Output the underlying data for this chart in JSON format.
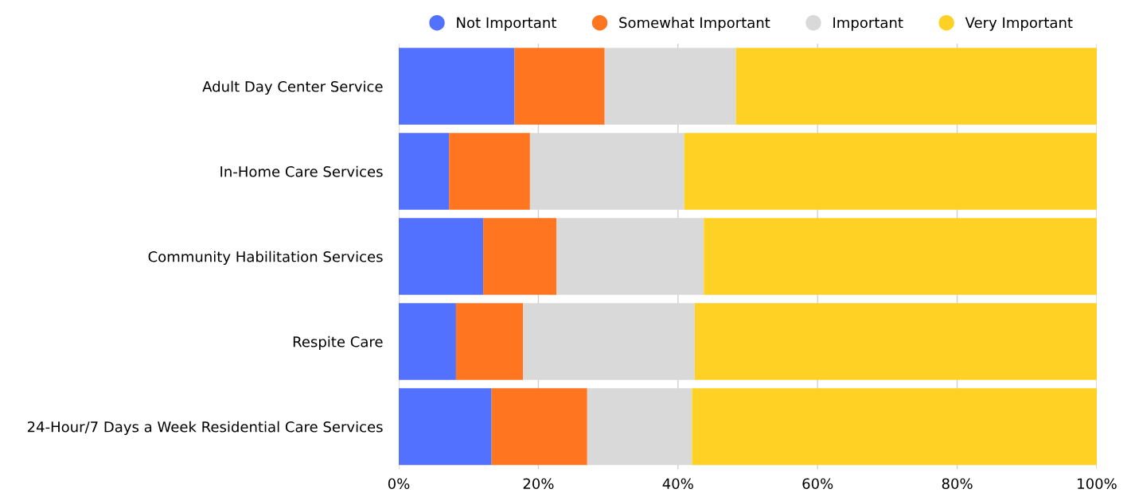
{
  "chart_data": {
    "type": "bar",
    "orientation": "horizontal",
    "stacked": true,
    "categories": [
      "Adult Day Center Service",
      "In-Home Care Services",
      "Community Habilitation Services",
      "Respite Care",
      "24-Hour/7 Days a Week Residential Care Services"
    ],
    "series": [
      {
        "name": "Not Important",
        "color": "#5271ff",
        "values": [
          16.6,
          7.2,
          12.1,
          8.2,
          13.3
        ]
      },
      {
        "name": "Somewhat Important",
        "color": "#ff7520",
        "values": [
          12.9,
          11.6,
          10.5,
          9.6,
          13.7
        ]
      },
      {
        "name": "Important",
        "color": "#d9d9d9",
        "values": [
          18.8,
          22.1,
          21.1,
          24.6,
          15.0
        ]
      },
      {
        "name": "Very Important",
        "color": "#ffd124",
        "values": [
          51.7,
          59.1,
          56.3,
          57.6,
          58.0
        ]
      }
    ],
    "xlim": [
      0,
      100
    ],
    "xticks": [
      {
        "value": 0,
        "label": "0%"
      },
      {
        "value": 20,
        "label": "20%"
      },
      {
        "value": 40,
        "label": "40%"
      },
      {
        "value": 60,
        "label": "60%"
      },
      {
        "value": 80,
        "label": "80%"
      },
      {
        "value": 100,
        "label": "100%"
      }
    ],
    "grid": "x",
    "legend": "top"
  }
}
